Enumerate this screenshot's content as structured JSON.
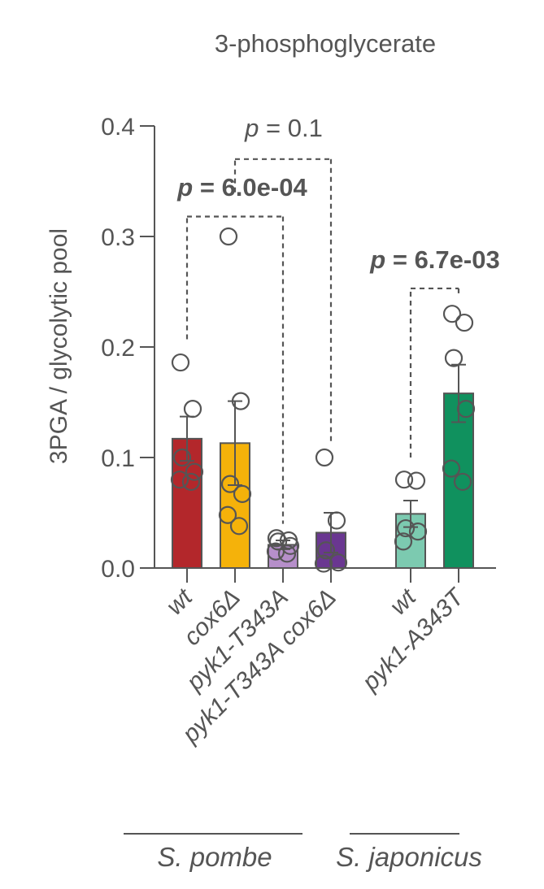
{
  "chart_data": {
    "type": "bar",
    "title": "3-phosphoglycerate",
    "ylabel": "3PGA / glycolytic pool",
    "xlabel": "",
    "ylim": [
      0,
      0.4
    ],
    "yticks": [
      "0.0",
      "0.1",
      "0.2",
      "0.3",
      "0.4"
    ],
    "ytick_values": [
      0.0,
      0.1,
      0.2,
      0.3,
      0.4
    ],
    "categories": [
      "wt",
      "cox6Δ",
      "pyk1-T343A",
      "pyk1-T343A cox6Δ",
      "wt",
      "pyk1-A343T"
    ],
    "values": [
      0.117,
      0.113,
      0.021,
      0.032,
      0.049,
      0.158
    ],
    "errors": [
      0.02,
      0.038,
      0.004,
      0.018,
      0.012,
      0.026
    ],
    "colors": [
      "#b3272b",
      "#f5b20a",
      "#b68fca",
      "#6a3791",
      "#7ccab0",
      "#10915e"
    ],
    "points": [
      [
        0.186,
        0.144,
        0.1,
        0.087,
        0.08,
        0.078
      ],
      [
        0.3,
        0.151,
        0.076,
        0.067,
        0.048,
        0.038
      ],
      [
        0.027,
        0.025,
        0.024,
        0.02,
        0.015,
        0.013
      ],
      [
        0.1,
        0.043,
        0.016,
        0.005,
        0.004
      ],
      [
        0.08,
        0.079,
        0.036,
        0.033,
        0.024
      ],
      [
        0.23,
        0.222,
        0.19,
        0.144,
        0.09,
        0.078
      ]
    ],
    "groups": [
      {
        "name": "S. pombe",
        "members": [
          0,
          1,
          2,
          3
        ]
      },
      {
        "name": "S. japonicus",
        "members": [
          4,
          5
        ]
      }
    ],
    "comparisons": [
      {
        "from": 0,
        "to": 2,
        "y": 0.318,
        "label_p": "p",
        "label_rest": " = 6.0e-04",
        "bold": true,
        "from_end": 0.207,
        "to_end": 0.04
      },
      {
        "from": 1,
        "to": 3,
        "y": 0.37,
        "label_p": "p",
        "label_rest": " = 0.1",
        "bold": false,
        "from_end": 0.34,
        "to_end": 0.112
      },
      {
        "from": 4,
        "to": 5,
        "y": 0.253,
        "label_p": "p",
        "label_rest": " = 6.7e-03",
        "bold": true,
        "from_end": 0.1,
        "to_end": 0.245
      }
    ]
  },
  "colors": {
    "axis": "#555555",
    "text": "#555555"
  }
}
